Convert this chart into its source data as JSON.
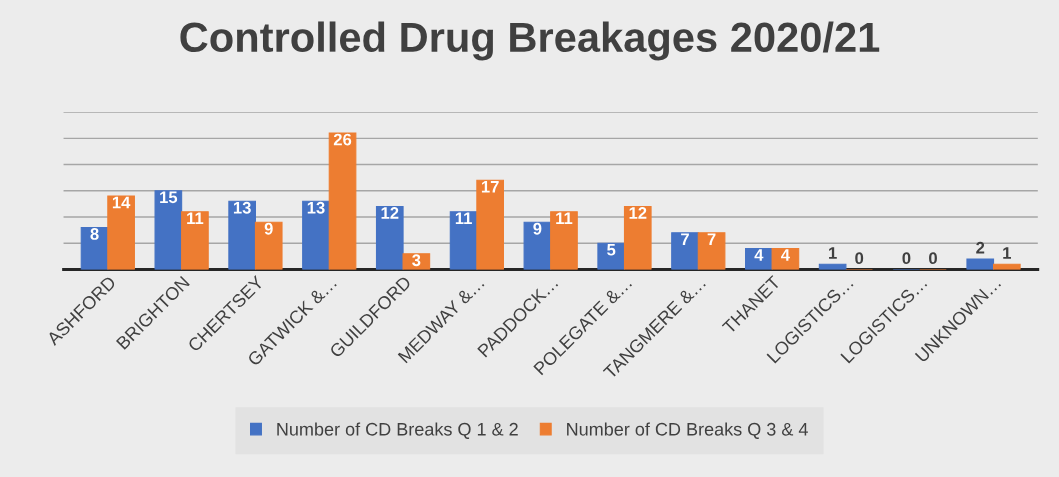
{
  "chart_data": {
    "type": "bar",
    "title": "Controlled Drug Breakages 2020/21",
    "categories": [
      "ASHFORD",
      "BRIGHTON",
      "CHERTSEY",
      "GATWICK &…",
      "GUILDFORD",
      "MEDWAY &…",
      "PADDOCK…",
      "POLEGATE &…",
      "TANGMERE &…",
      "THANET",
      "LOGISTICS…",
      "LOGISTICS…",
      "UNKNOWN…"
    ],
    "series": [
      {
        "name": "Number of CD Breaks Q 1 & 2",
        "color": "#4472c4",
        "values": [
          8,
          15,
          13,
          13,
          12,
          11,
          9,
          5,
          7,
          4,
          1,
          0,
          2
        ]
      },
      {
        "name": "Number of CD Breaks Q 3 & 4",
        "color": "#ed7d31",
        "values": [
          14,
          11,
          9,
          26,
          3,
          17,
          11,
          12,
          7,
          4,
          0,
          0,
          1
        ]
      }
    ],
    "ylim": [
      0,
      30
    ],
    "yticks": [
      {
        "value": 0,
        "label": null
      },
      {
        "value": 5,
        "label": null
      },
      {
        "value": 10,
        "label": null
      },
      {
        "value": 15,
        "label": null
      },
      {
        "value": 20,
        "label": null
      },
      {
        "value": 25,
        "label": null
      },
      {
        "value": 30,
        "label": null
      }
    ],
    "tick_labels": "x",
    "grid": "y",
    "data_labels": true,
    "legend": "bottom"
  }
}
